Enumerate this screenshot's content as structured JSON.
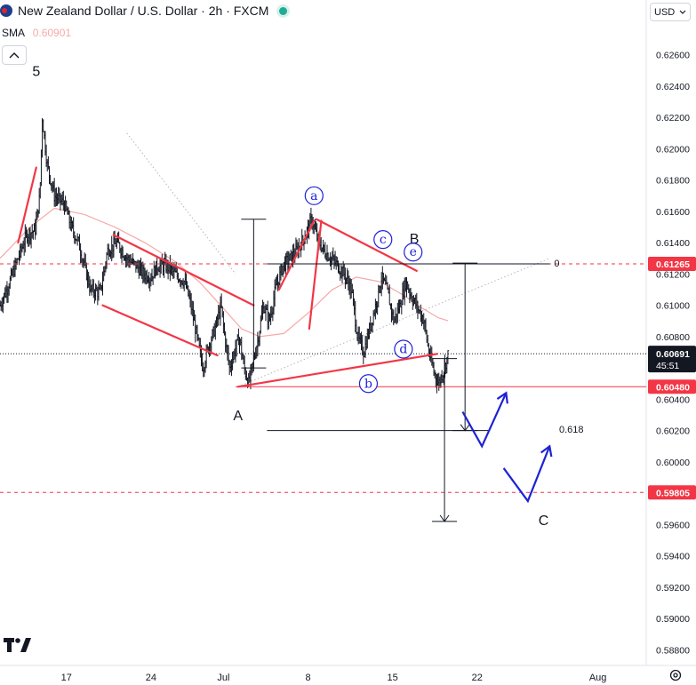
{
  "header": {
    "title": "New Zealand Dollar / U.S. Dollar · 2h · FXCM",
    "indicator_label": "SMA",
    "indicator_value": "0.60901",
    "currency": "USD"
  },
  "chart_data": {
    "type": "candlestick",
    "ylim": [
      0.587,
      0.6295
    ],
    "y_ticks": [
      "0.62600",
      "0.62400",
      "0.62200",
      "0.62000",
      "0.61800",
      "0.61600",
      "0.61400",
      "0.61200",
      "0.61000",
      "0.60800",
      "0.60400",
      "0.60200",
      "0.60000",
      "0.59600",
      "0.59400",
      "0.59200",
      "0.59000",
      "0.58800"
    ],
    "x_ticks": [
      {
        "label": "17",
        "day": 17
      },
      {
        "label": "24",
        "day": 24
      },
      {
        "label": "Jul",
        "day": 30
      },
      {
        "label": "8",
        "day": 37
      },
      {
        "label": "15",
        "day": 44
      },
      {
        "label": "22",
        "day": 51
      },
      {
        "label": "Aug",
        "day": 61
      }
    ],
    "x_range_days": [
      11.5,
      65.0
    ],
    "price_labels": [
      {
        "value": 0.61265,
        "text": "0.61265",
        "color": "#f23645",
        "style": "dashed"
      },
      {
        "value": 0.6048,
        "text": "0.60480",
        "color": "#f23645",
        "style": "solid"
      },
      {
        "value": 0.59805,
        "text": "0.59805",
        "color": "#f23645",
        "style": "dashed"
      }
    ],
    "current_price": {
      "value": 0.60691,
      "text": "0.60691",
      "countdown": "45:51"
    },
    "price_path": [
      [
        11.5,
        0.61
      ],
      [
        12.3,
        0.6115
      ],
      [
        13.0,
        0.613
      ],
      [
        13.7,
        0.6145
      ],
      [
        14.4,
        0.6148
      ],
      [
        14.8,
        0.617
      ],
      [
        15.0,
        0.622
      ],
      [
        15.4,
        0.619
      ],
      [
        16.0,
        0.617
      ],
      [
        16.8,
        0.6165
      ],
      [
        17.4,
        0.615
      ],
      [
        18.0,
        0.614
      ],
      [
        18.5,
        0.6125
      ],
      [
        19.0,
        0.611
      ],
      [
        19.8,
        0.6108
      ],
      [
        20.4,
        0.6135
      ],
      [
        21.2,
        0.614
      ],
      [
        22.0,
        0.613
      ],
      [
        22.8,
        0.6125
      ],
      [
        23.4,
        0.612
      ],
      [
        24.0,
        0.6118
      ],
      [
        24.5,
        0.6125
      ],
      [
        25.3,
        0.6125
      ],
      [
        26.0,
        0.612
      ],
      [
        26.8,
        0.6115
      ],
      [
        27.3,
        0.61
      ],
      [
        27.8,
        0.608
      ],
      [
        28.3,
        0.606
      ],
      [
        28.8,
        0.6075
      ],
      [
        29.3,
        0.6085
      ],
      [
        29.8,
        0.61
      ],
      [
        30.1,
        0.608
      ],
      [
        30.5,
        0.606
      ],
      [
        30.9,
        0.607
      ],
      [
        31.3,
        0.608
      ],
      [
        31.7,
        0.606
      ],
      [
        32.1,
        0.605
      ],
      [
        32.5,
        0.6065
      ],
      [
        32.9,
        0.608
      ],
      [
        33.3,
        0.61
      ],
      [
        33.8,
        0.609
      ],
      [
        34.3,
        0.611
      ],
      [
        34.9,
        0.6125
      ],
      [
        35.5,
        0.613
      ],
      [
        36.1,
        0.6135
      ],
      [
        36.8,
        0.6145
      ],
      [
        37.3,
        0.6155
      ],
      [
        37.8,
        0.6142
      ],
      [
        38.3,
        0.6135
      ],
      [
        38.9,
        0.613
      ],
      [
        39.4,
        0.6126
      ],
      [
        40.0,
        0.612
      ],
      [
        40.6,
        0.611
      ],
      [
        41.1,
        0.608
      ],
      [
        41.6,
        0.607
      ],
      [
        42.1,
        0.6085
      ],
      [
        42.6,
        0.61
      ],
      [
        43.1,
        0.6118
      ],
      [
        43.6,
        0.6108
      ],
      [
        44.1,
        0.609
      ],
      [
        44.6,
        0.61
      ],
      [
        45.1,
        0.6115
      ],
      [
        45.6,
        0.6105
      ],
      [
        46.1,
        0.6098
      ],
      [
        46.6,
        0.609
      ],
      [
        47.0,
        0.607
      ],
      [
        47.4,
        0.6058
      ],
      [
        47.8,
        0.605
      ],
      [
        48.3,
        0.606
      ],
      [
        48.6,
        0.6069
      ]
    ],
    "sma_path": [
      [
        11.5,
        0.613
      ],
      [
        14.0,
        0.615
      ],
      [
        16.0,
        0.6162
      ],
      [
        18.5,
        0.6158
      ],
      [
        21.0,
        0.615
      ],
      [
        23.5,
        0.614
      ],
      [
        26.0,
        0.6128
      ],
      [
        28.0,
        0.6115
      ],
      [
        30.0,
        0.6098
      ],
      [
        31.5,
        0.6085
      ],
      [
        33.0,
        0.608
      ],
      [
        35.0,
        0.6082
      ],
      [
        37.0,
        0.6095
      ],
      [
        39.0,
        0.611
      ],
      [
        41.0,
        0.6118
      ],
      [
        43.0,
        0.6115
      ],
      [
        45.0,
        0.6106
      ],
      [
        46.5,
        0.6098
      ],
      [
        47.8,
        0.6092
      ],
      [
        48.6,
        0.60901
      ]
    ],
    "red_lines": [
      [
        [
          13.0,
          0.614
        ],
        [
          14.5,
          0.6188
        ]
      ],
      [
        [
          20.9,
          0.6145
        ],
        [
          32.5,
          0.61
        ]
      ],
      [
        [
          20.0,
          0.61
        ],
        [
          29.5,
          0.6068
        ]
      ],
      [
        [
          31.2,
          0.6048
        ],
        [
          47.7,
          0.6069
        ]
      ],
      [
        [
          34.6,
          0.611
        ],
        [
          37.5,
          0.6154
        ]
      ],
      [
        [
          37.1,
          0.6085
        ],
        [
          38.1,
          0.6154
        ]
      ],
      [
        [
          37.7,
          0.6155
        ],
        [
          46.0,
          0.6122
        ]
      ]
    ],
    "blue_paths": [
      [
        [
          49.8,
          0.6032
        ],
        [
          51.4,
          0.601
        ],
        [
          53.4,
          0.6044
        ],
        [
          54.0,
          0.6037
        ]
      ],
      [
        [
          53.2,
          0.5996
        ],
        [
          55.2,
          0.5975
        ],
        [
          57.0,
          0.601
        ],
        [
          57.6,
          0.6007
        ]
      ]
    ],
    "black_lines": [
      {
        "from": [
          32.5,
          0.606
        ],
        "to": [
          32.5,
          0.6155
        ],
        "caps": true
      },
      {
        "from": [
          33.6,
          0.61265
        ],
        "to": [
          57.0,
          0.61265
        ]
      },
      {
        "from": [
          33.6,
          0.602
        ],
        "to": [
          52.0,
          0.602
        ]
      },
      {
        "from": [
          48.3,
          0.6066
        ],
        "to": [
          48.3,
          0.5962
        ],
        "arrow": true
      },
      {
        "from": [
          50.0,
          0.6127
        ],
        "to": [
          50.0,
          0.602
        ],
        "arrow": true
      }
    ],
    "grey_dotted": [
      {
        "from": [
          22.0,
          0.621
        ],
        "to": [
          31.0,
          0.612
        ]
      },
      {
        "from": [
          31.2,
          0.6048
        ],
        "to": [
          57.0,
          0.613
        ]
      }
    ],
    "annotations": [
      {
        "text": "5",
        "day": 14.5,
        "price": 0.625,
        "style": "plain"
      },
      {
        "text": "A",
        "day": 31.2,
        "price": 0.603,
        "style": "plain"
      },
      {
        "text": "B",
        "day": 45.8,
        "price": 0.6143,
        "style": "plain"
      },
      {
        "text": "C",
        "day": 56.5,
        "price": 0.5963,
        "style": "plain"
      },
      {
        "text": "a",
        "day": 37.5,
        "price": 0.617,
        "style": "circle"
      },
      {
        "text": "b",
        "day": 42.0,
        "price": 0.605,
        "style": "circle"
      },
      {
        "text": "c",
        "day": 43.2,
        "price": 0.6142,
        "style": "circle"
      },
      {
        "text": "d",
        "day": 44.9,
        "price": 0.6072,
        "style": "circle"
      },
      {
        "text": "e",
        "day": 45.7,
        "price": 0.6134,
        "style": "circle"
      },
      {
        "text": "0",
        "day": 57.6,
        "price": 0.6127,
        "style": "small"
      },
      {
        "text": "0.618",
        "day": 58.8,
        "price": 0.6021,
        "style": "small"
      }
    ]
  }
}
